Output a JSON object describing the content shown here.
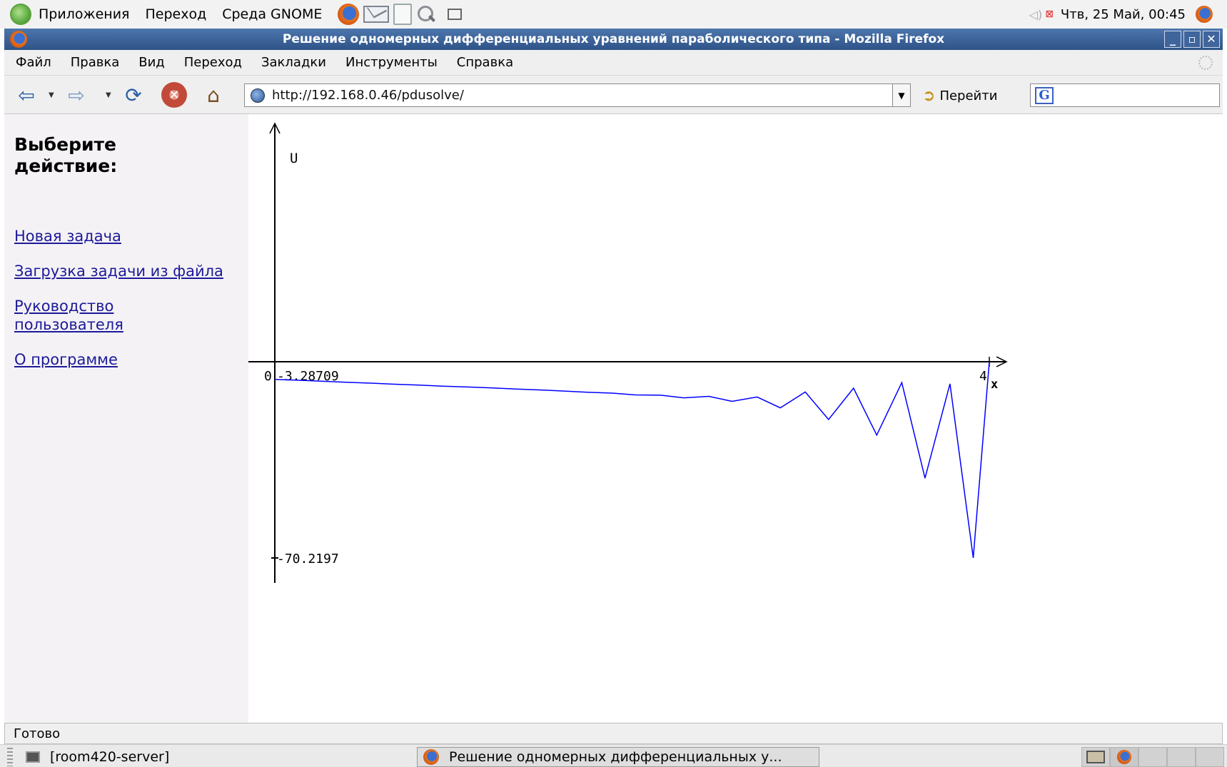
{
  "gnome_panel": {
    "menus": [
      "Приложения",
      "Переход",
      "Среда GNOME"
    ],
    "clock": "Чтв, 25 Май, 00:45"
  },
  "window": {
    "title": "Решение одномерных дифференциальных уравнений параболического типа - Mozilla Firefox"
  },
  "menubar": {
    "items": [
      "Файл",
      "Правка",
      "Вид",
      "Переход",
      "Закладки",
      "Инструменты",
      "Справка"
    ]
  },
  "navbar": {
    "url": "http://192.168.0.46/pdusolve/",
    "go_label": "Перейти",
    "search_value": ""
  },
  "sidebar": {
    "heading": "Выберите действие:",
    "links": [
      "Новая задача",
      "Загрузка задачи из файла",
      "Руководство пользователя",
      "О программе"
    ]
  },
  "chart_data": {
    "type": "line",
    "ylabel": "U",
    "xlabel": "x",
    "x_tick_labels": [
      "0",
      "4"
    ],
    "y_tick_labels": [
      "-3.28709",
      "-70.2197"
    ],
    "xlim": [
      0,
      4
    ],
    "ylim": [
      -70.2197,
      -3.28709
    ],
    "series_color": "#0000ff",
    "x": [
      0,
      0.13,
      0.27,
      0.4,
      0.54,
      0.67,
      0.81,
      0.94,
      1.08,
      1.21,
      1.35,
      1.48,
      1.62,
      1.75,
      1.89,
      2.02,
      2.16,
      2.29,
      2.43,
      2.56,
      2.7,
      2.83,
      2.97,
      3.1,
      3.24,
      3.37,
      3.51,
      3.64,
      3.78,
      3.91,
      4.0
    ],
    "values": [
      -9.3,
      -9.6,
      -9.95,
      -10.3,
      -10.6,
      -10.95,
      -11.25,
      -11.6,
      -11.9,
      -12.2,
      -12.6,
      -12.9,
      -13.3,
      -13.7,
      -14.0,
      -14.6,
      -14.7,
      -15.6,
      -15.1,
      -16.8,
      -15.3,
      -19.0,
      -13.6,
      -23.0,
      -12.3,
      -28.3,
      -10.4,
      -43.0,
      -10.8,
      -70.2,
      -3.3
    ]
  },
  "statusbar": {
    "text": "Готово"
  },
  "taskbar": {
    "tasks": [
      "[room420-server]",
      "Решение одномерных дифференциальных у..."
    ]
  }
}
